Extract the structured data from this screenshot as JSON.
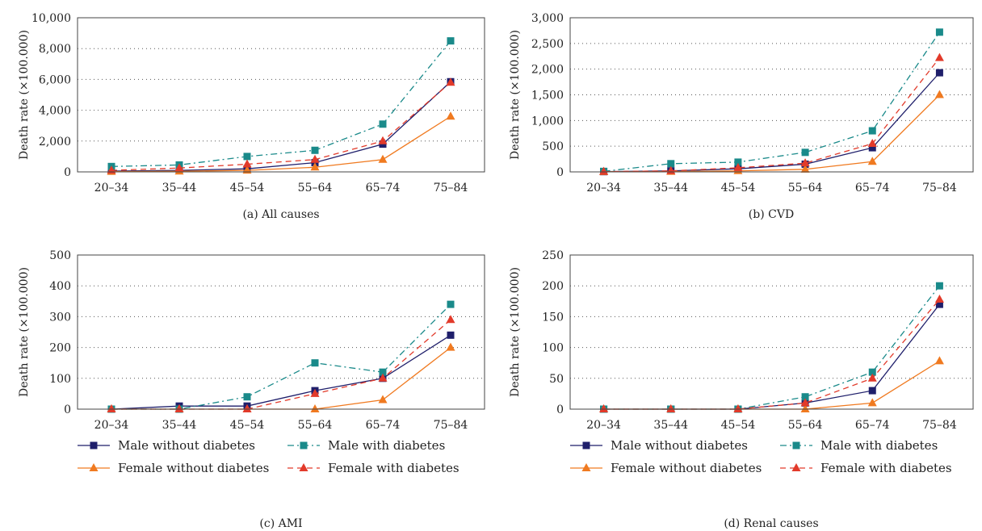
{
  "legend": {
    "entries": [
      {
        "series": 0,
        "label": "Male without diabetes"
      },
      {
        "series": 1,
        "label": "Male with diabetes"
      },
      {
        "series": 2,
        "label": "Female without diabetes"
      },
      {
        "series": 3,
        "label": "Female with diabetes"
      }
    ]
  },
  "series_styles": [
    {
      "color": "#1f1f6b",
      "marker": "square",
      "dash": ""
    },
    {
      "color": "#1a8a8a",
      "marker": "square",
      "dash": "8 4 2 4"
    },
    {
      "color": "#f07a20",
      "marker": "triangle",
      "dash": ""
    },
    {
      "color": "#e23a2a",
      "marker": "triangle",
      "dash": "7 5"
    }
  ],
  "chart_data": [
    {
      "type": "line",
      "caption": "(a)  All causes",
      "ylabel": "Death rate (×100.000)",
      "categories": [
        "20–34",
        "35–44",
        "45–54",
        "55–64",
        "65–74",
        "75–84"
      ],
      "ylim": [
        0,
        10000
      ],
      "yticks": [
        0,
        2000,
        4000,
        6000,
        8000,
        10000
      ],
      "ytick_labels": [
        "0",
        "2,000",
        "4,000",
        "6,000",
        "8,000",
        "10,000"
      ],
      "grid": true,
      "series": [
        {
          "name": "Male without diabetes",
          "values": [
            50,
            100,
            200,
            600,
            1800,
            5850
          ]
        },
        {
          "name": "Male with diabetes",
          "values": [
            350,
            450,
            1000,
            1400,
            3100,
            8500
          ]
        },
        {
          "name": "Female without diabetes",
          "values": [
            20,
            40,
            100,
            300,
            800,
            3600
          ]
        },
        {
          "name": "Female with diabetes",
          "values": [
            100,
            250,
            500,
            800,
            2000,
            5800
          ]
        }
      ]
    },
    {
      "type": "line",
      "caption": "(b)  CVD",
      "ylabel": "Death rate (×100.000)",
      "categories": [
        "20–34",
        "35–44",
        "45–54",
        "55–64",
        "65–74",
        "75–84"
      ],
      "ylim": [
        0,
        3000
      ],
      "yticks": [
        0,
        500,
        1000,
        1500,
        2000,
        2500,
        3000
      ],
      "ytick_labels": [
        "0",
        "500",
        "1,000",
        "1,500",
        "2,000",
        "2,500",
        "3,000"
      ],
      "grid": true,
      "series": [
        {
          "name": "Male without diabetes",
          "values": [
            5,
            20,
            60,
            150,
            470,
            1930
          ]
        },
        {
          "name": "Male with diabetes",
          "values": [
            10,
            160,
            190,
            380,
            800,
            2720
          ]
        },
        {
          "name": "Female without diabetes",
          "values": [
            2,
            5,
            20,
            50,
            200,
            1500
          ]
        },
        {
          "name": "Female with diabetes",
          "values": [
            5,
            20,
            80,
            170,
            550,
            2220
          ]
        }
      ]
    },
    {
      "type": "line",
      "caption": "(c)  AMI",
      "ylabel": "Death rate (×100.000)",
      "categories": [
        "20–34",
        "35–44",
        "45–54",
        "55–64",
        "65–74",
        "75–84"
      ],
      "ylim": [
        0,
        500
      ],
      "yticks": [
        0,
        100,
        200,
        300,
        400,
        500
      ],
      "ytick_labels": [
        "0",
        "100",
        "200",
        "300",
        "400",
        "500"
      ],
      "grid": true,
      "series": [
        {
          "name": "Male without diabetes",
          "values": [
            0,
            10,
            10,
            60,
            100,
            240
          ]
        },
        {
          "name": "Male with diabetes",
          "values": [
            0,
            0,
            40,
            150,
            120,
            340
          ]
        },
        {
          "name": "Female without diabetes",
          "values": [
            0,
            0,
            0,
            0,
            30,
            200
          ]
        },
        {
          "name": "Female with diabetes",
          "values": [
            0,
            0,
            0,
            50,
            100,
            290
          ]
        }
      ]
    },
    {
      "type": "line",
      "caption": "(d)  Renal causes",
      "ylabel": "Death rate (×100.000)",
      "categories": [
        "20–34",
        "35–44",
        "45–54",
        "55–64",
        "65–74",
        "75–84"
      ],
      "ylim": [
        0,
        250
      ],
      "yticks": [
        0,
        50,
        100,
        150,
        200,
        250
      ],
      "ytick_labels": [
        "0",
        "50",
        "100",
        "150",
        "200",
        "250"
      ],
      "grid": true,
      "series": [
        {
          "name": "Male without diabetes",
          "values": [
            0,
            0,
            0,
            10,
            30,
            170
          ]
        },
        {
          "name": "Male with diabetes",
          "values": [
            0,
            0,
            0,
            20,
            60,
            200
          ]
        },
        {
          "name": "Female without diabetes",
          "values": [
            0,
            0,
            0,
            0,
            10,
            78
          ]
        },
        {
          "name": "Female with diabetes",
          "values": [
            0,
            0,
            0,
            10,
            50,
            178
          ]
        }
      ]
    }
  ]
}
